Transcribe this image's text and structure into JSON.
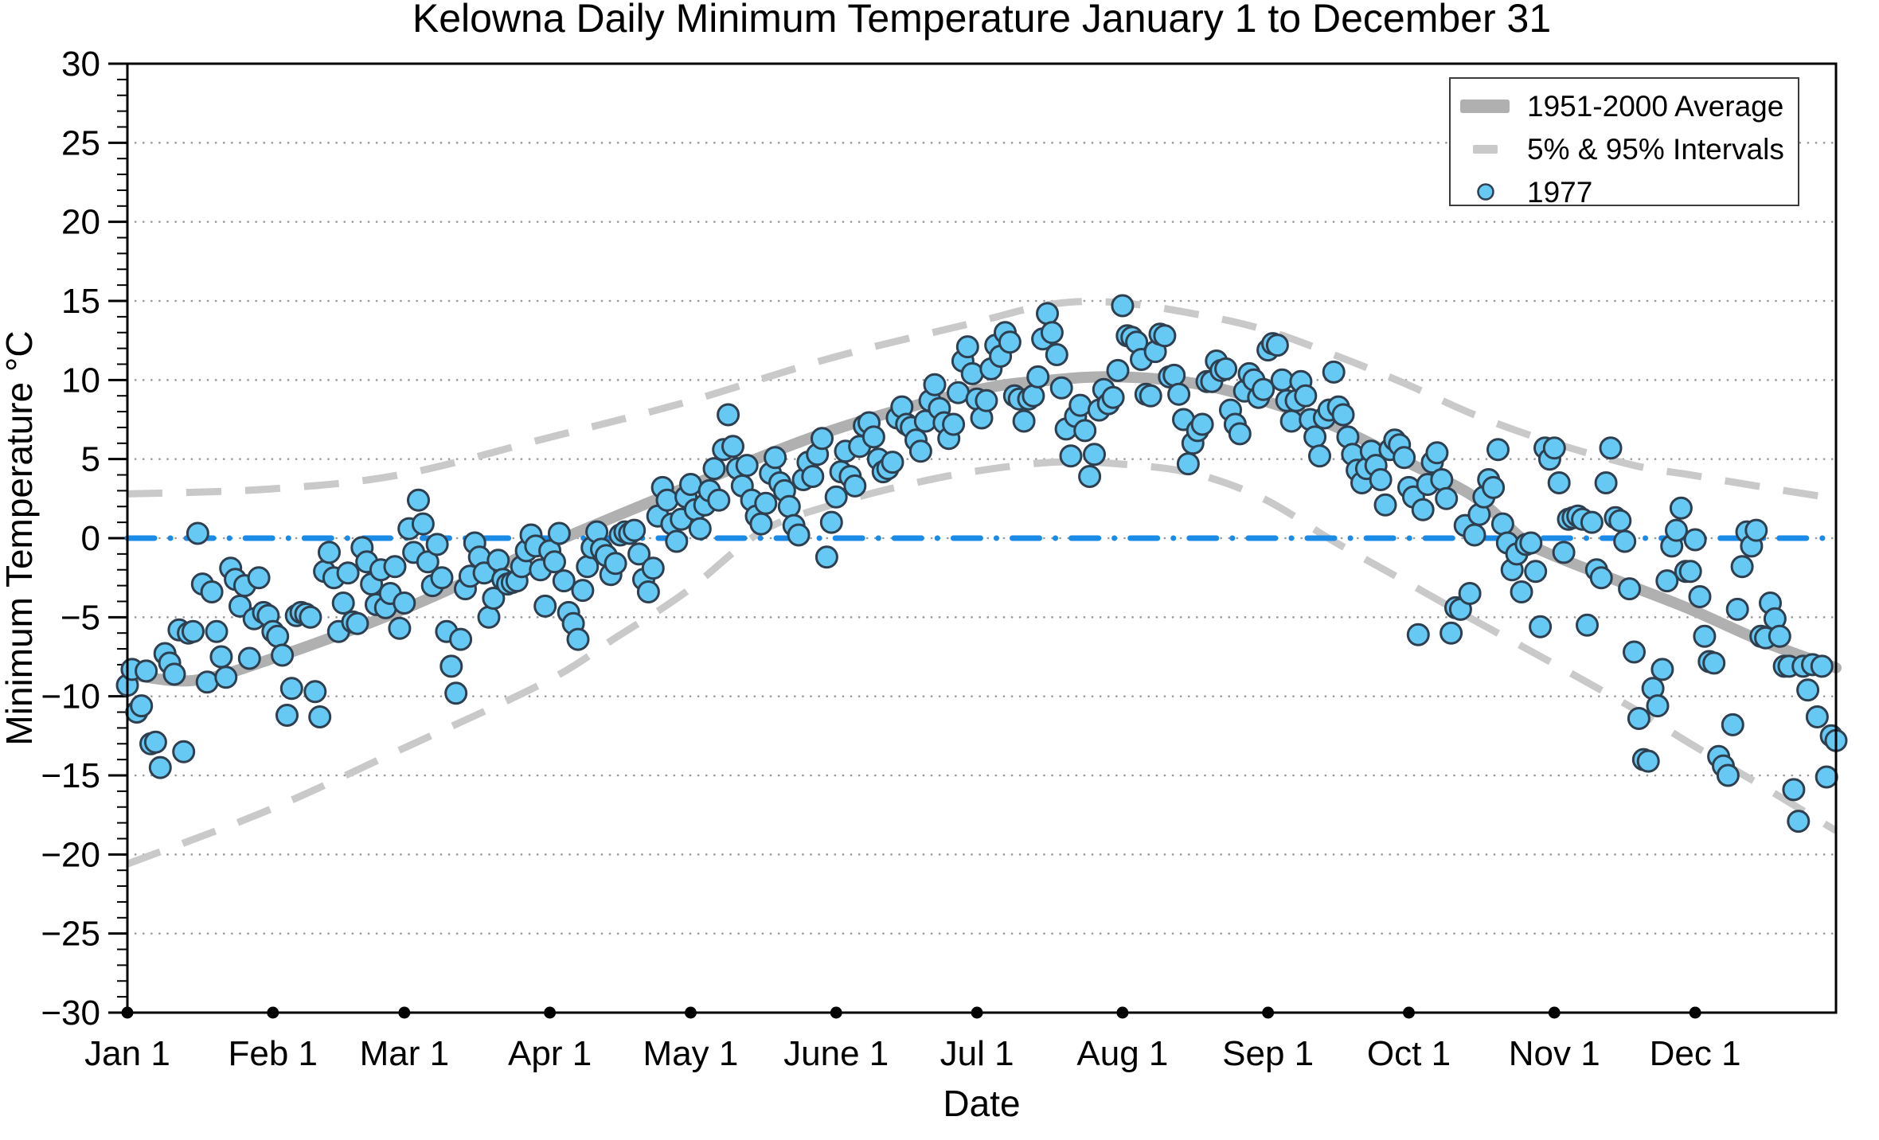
{
  "title": "Kelowna Daily Minimum Temperature January 1 to December 31",
  "axes": {
    "y_label": "Minimum Temperature °C",
    "x_label": "Date",
    "y_range": [
      -30,
      30
    ],
    "y_major_step": 5,
    "y_minor_step": 1,
    "y_tick_labels": [
      "30",
      "25",
      "20",
      "15",
      "10",
      "5",
      "0",
      "−5",
      "−10",
      "−15",
      "−20",
      "−25",
      "−30"
    ],
    "x_ticks": [
      {
        "label": "Jan 1",
        "day": 1
      },
      {
        "label": "Feb 1",
        "day": 32
      },
      {
        "label": "Mar 1",
        "day": 60
      },
      {
        "label": "Apr 1",
        "day": 91
      },
      {
        "label": "May 1",
        "day": 121
      },
      {
        "label": "June 1",
        "day": 152
      },
      {
        "label": "Jul 1",
        "day": 182
      },
      {
        "label": "Aug 1",
        "day": 213
      },
      {
        "label": "Sep 1",
        "day": 244
      },
      {
        "label": "Oct 1",
        "day": 274
      },
      {
        "label": "Nov 1",
        "day": 305
      },
      {
        "label": "Dec 1",
        "day": 335
      }
    ]
  },
  "legend": {
    "items": [
      {
        "label": "1951-2000 Average",
        "swatch": "thick-gray-line"
      },
      {
        "label": "5% & 95% Intervals",
        "swatch": "gray-dash"
      },
      {
        "label": "1977",
        "swatch": "blue-point"
      }
    ]
  },
  "colors": {
    "average_line": "#b0b0b0",
    "interval_line": "#c9c9c9",
    "point_fill": "#66c9f3",
    "point_edge": "#2e3f50",
    "zero_line": "#1b8be8",
    "grid": "#9a9a9a",
    "axis": "#000000",
    "legend_border": "#3c3c3c"
  },
  "chart_data": {
    "type": "scatter",
    "x_unit": "day_of_year",
    "x_range": [
      1,
      365
    ],
    "ylim": [
      -30,
      30
    ],
    "grid": "horizontal-dotted",
    "legend_position": "top-right",
    "zero_reference_line": 0,
    "series": [
      {
        "name": "1951-2000 Average",
        "style": "thick-gray",
        "anchors": [
          [
            1,
            -8.6
          ],
          [
            15,
            -9.0
          ],
          [
            31,
            -7.7
          ],
          [
            59,
            -4.6
          ],
          [
            90,
            -0.5
          ],
          [
            120,
            3.2
          ],
          [
            151,
            6.8
          ],
          [
            181,
            9.3
          ],
          [
            198,
            10.0
          ],
          [
            212,
            10.2
          ],
          [
            228,
            9.8
          ],
          [
            243,
            8.7
          ],
          [
            258,
            7.1
          ],
          [
            273,
            4.9
          ],
          [
            288,
            2.6
          ],
          [
            298,
            0.0
          ],
          [
            304,
            -1.0
          ],
          [
            322,
            -3.1
          ],
          [
            334,
            -4.5
          ],
          [
            350,
            -6.6
          ],
          [
            365,
            -8.2
          ]
        ]
      },
      {
        "name": "95% Interval",
        "style": "gray-dashed",
        "anchors": [
          [
            1,
            2.8
          ],
          [
            31,
            3.1
          ],
          [
            59,
            4.0
          ],
          [
            90,
            6.3
          ],
          [
            120,
            8.6
          ],
          [
            151,
            11.4
          ],
          [
            181,
            13.6
          ],
          [
            198,
            14.8
          ],
          [
            212,
            14.9
          ],
          [
            228,
            14.2
          ],
          [
            243,
            13.2
          ],
          [
            258,
            11.6
          ],
          [
            273,
            9.8
          ],
          [
            288,
            7.8
          ],
          [
            304,
            6.1
          ],
          [
            322,
            4.6
          ],
          [
            334,
            4.0
          ],
          [
            350,
            3.2
          ],
          [
            365,
            2.5
          ]
        ]
      },
      {
        "name": "5% Interval",
        "style": "gray-dashed",
        "anchors": [
          [
            1,
            -20.6
          ],
          [
            31,
            -17.2
          ],
          [
            59,
            -13.4
          ],
          [
            90,
            -9.1
          ],
          [
            105,
            -6.3
          ],
          [
            120,
            -3.4
          ],
          [
            136,
            0.4
          ],
          [
            151,
            2.1
          ],
          [
            166,
            3.3
          ],
          [
            181,
            4.2
          ],
          [
            198,
            4.8
          ],
          [
            212,
            4.7
          ],
          [
            228,
            4.1
          ],
          [
            243,
            2.5
          ],
          [
            258,
            -0.2
          ],
          [
            273,
            -2.7
          ],
          [
            288,
            -5.2
          ],
          [
            304,
            -7.8
          ],
          [
            322,
            -10.8
          ],
          [
            334,
            -13.0
          ],
          [
            350,
            -15.8
          ],
          [
            365,
            -18.5
          ]
        ]
      }
    ],
    "points_series_name": "1977",
    "daily_min_1977": [
      -9.3,
      -8.3,
      -11.0,
      -10.6,
      -8.4,
      -13.0,
      -12.9,
      -14.5,
      -7.3,
      -7.9,
      -8.6,
      -5.8,
      -13.5,
      -6.0,
      -5.9,
      0.3,
      -2.9,
      -9.1,
      -3.4,
      -5.9,
      -7.5,
      -8.8,
      -1.9,
      -2.6,
      -4.3,
      -3.0,
      -7.6,
      -5.1,
      -2.5,
      -4.7,
      -4.9,
      -5.9,
      -6.2,
      -7.4,
      -11.2,
      -9.5,
      -4.9,
      -4.7,
      -4.8,
      -5.0,
      -9.7,
      -11.3,
      -2.1,
      -0.9,
      -2.5,
      -5.9,
      -4.1,
      -2.2,
      -5.3,
      -5.4,
      -0.6,
      -1.5,
      -2.9,
      -4.2,
      -2.0,
      -4.4,
      -3.5,
      -1.8,
      -5.7,
      -4.1,
      0.6,
      -0.9,
      2.4,
      0.9,
      -1.5,
      -3.0,
      -0.4,
      -2.5,
      -5.9,
      -8.1,
      -9.8,
      -6.4,
      -3.2,
      -2.4,
      -0.3,
      -1.2,
      -2.2,
      -5.0,
      -3.8,
      -1.4,
      -2.6,
      -2.9,
      -2.8,
      -2.7,
      -1.8,
      -0.8,
      0.2,
      -0.5,
      -2.0,
      -4.3,
      -0.8,
      -1.5,
      0.3,
      -2.7,
      -4.7,
      -5.4,
      -6.4,
      -3.3,
      -1.8,
      -0.6,
      0.4,
      -0.7,
      -1.1,
      -2.3,
      -1.6,
      0.2,
      0.4,
      0.3,
      0.5,
      -1.0,
      -2.6,
      -3.4,
      -1.9,
      1.4,
      3.2,
      2.4,
      0.9,
      -0.2,
      1.2,
      2.6,
      3.4,
      1.8,
      0.6,
      2.1,
      3.0,
      4.4,
      2.4,
      5.6,
      7.8,
      5.8,
      4.4,
      3.3,
      4.6,
      2.4,
      1.4,
      0.9,
      2.2,
      4.1,
      5.1,
      3.5,
      3.0,
      2.0,
      0.8,
      0.2,
      3.7,
      4.8,
      3.9,
      5.3,
      6.3,
      -1.2,
      1.0,
      2.6,
      4.2,
      5.5,
      3.9,
      3.3,
      5.8,
      7.1,
      7.3,
      6.4,
      5.0,
      4.2,
      4.4,
      4.8,
      7.6,
      8.3,
      7.2,
      7.0,
      6.2,
      5.5,
      7.4,
      8.7,
      9.7,
      8.2,
      7.3,
      6.3,
      7.2,
      9.2,
      11.2,
      12.1,
      10.4,
      8.8,
      7.6,
      8.7,
      10.7,
      12.2,
      11.5,
      13.0,
      12.4,
      9.0,
      8.8,
      7.4,
      8.8,
      9.0,
      10.2,
      12.6,
      14.2,
      13.0,
      11.6,
      9.5,
      6.9,
      5.2,
      7.7,
      8.4,
      6.8,
      3.9,
      5.3,
      8.1,
      9.4,
      8.5,
      8.9,
      10.6,
      14.7,
      12.8,
      12.7,
      12.4,
      11.3,
      9.1,
      9.0,
      11.8,
      12.9,
      12.8,
      10.2,
      10.3,
      9.1,
      7.5,
      4.7,
      6.0,
      6.8,
      7.2,
      9.9,
      9.9,
      11.2,
      10.6,
      10.7,
      8.1,
      7.2,
      6.6,
      9.3,
      10.4,
      10.0,
      8.9,
      9.4,
      11.9,
      12.3,
      12.2,
      10.0,
      8.7,
      7.4,
      8.7,
      9.9,
      9.0,
      7.5,
      6.4,
      5.2,
      7.6,
      8.1,
      10.5,
      8.3,
      7.8,
      6.4,
      5.3,
      4.3,
      3.5,
      4.4,
      5.5,
      4.6,
      3.7,
      2.1,
      5.6,
      6.2,
      5.9,
      5.1,
      3.2,
      2.6,
      -6.1,
      1.8,
      3.4,
      4.8,
      5.4,
      3.7,
      2.5,
      -6.0,
      -4.4,
      -4.5,
      0.8,
      -3.5,
      0.2,
      1.5,
      2.6,
      3.7,
      3.2,
      5.6,
      0.9,
      -0.3,
      -2.0,
      -1.0,
      -3.4,
      -0.4,
      -0.3,
      -2.1,
      -5.6,
      5.7,
      5.0,
      5.7,
      3.5,
      -0.9,
      1.2,
      1.3,
      1.4,
      1.2,
      -5.5,
      1.0,
      -2.0,
      -2.5,
      3.5,
      5.7,
      1.3,
      1.1,
      -0.2,
      -3.2,
      -7.2,
      -11.4,
      -14.0,
      -14.1,
      -9.5,
      -10.6,
      -8.3,
      -2.7,
      -0.5,
      0.5,
      1.9,
      -2.1,
      -2.1,
      -0.1,
      -3.7,
      -6.2,
      -7.8,
      -7.9,
      -13.8,
      -14.4,
      -15.0,
      -11.8,
      -4.5,
      -1.8,
      0.4,
      -0.5,
      0.5,
      -6.2,
      -6.3,
      -4.1,
      -5.1,
      -6.2,
      -8.1,
      -8.1,
      -15.9,
      -17.9,
      -8.1,
      -9.6,
      -8.0,
      -11.3,
      -8.1,
      -15.1,
      -12.5,
      -12.8
    ]
  }
}
